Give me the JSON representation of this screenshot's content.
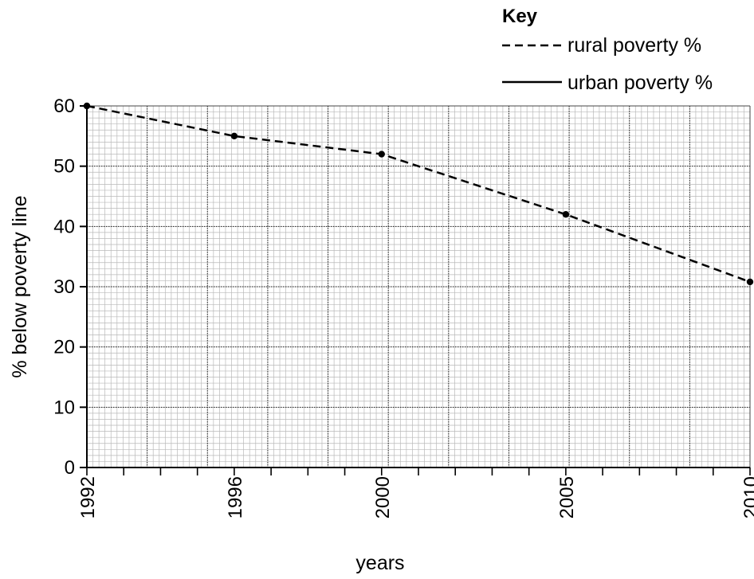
{
  "chart_data": {
    "type": "line",
    "xlabel": "years",
    "ylabel": "% below poverty line",
    "xlim": [
      1992,
      2010
    ],
    "ylim": [
      0,
      60
    ],
    "y_ticks": [
      0,
      10,
      20,
      30,
      40,
      50,
      60
    ],
    "x_tick_labels": [
      "1992",
      "1996",
      "2000",
      "2005",
      "2010"
    ],
    "x_tick_values": [
      1992,
      1996,
      2000,
      2005,
      2010
    ],
    "grid": true,
    "legend": {
      "title": "Key",
      "position": "top-right",
      "entries": [
        {
          "label": "rural poverty %",
          "style": "dashed"
        },
        {
          "label": "urban poverty %",
          "style": "solid"
        }
      ]
    },
    "series": [
      {
        "name": "rural poverty %",
        "style": "dashed",
        "x": [
          1992,
          1996,
          2000,
          2005,
          2010
        ],
        "y": [
          60,
          55,
          52,
          42,
          30.8
        ]
      }
    ]
  }
}
